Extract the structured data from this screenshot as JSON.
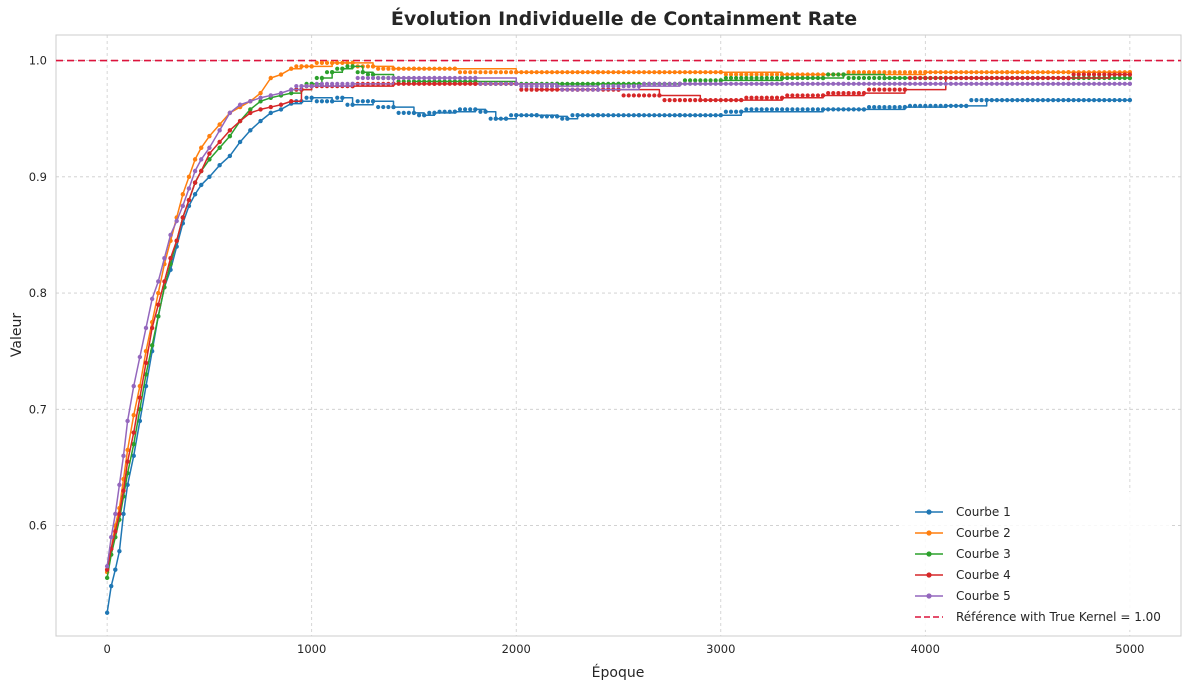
{
  "chart_data": {
    "type": "line",
    "title": "Évolution Individuelle de Containment Rate",
    "xlabel": "Époque",
    "ylabel": "Valeur",
    "xlim": [
      -250,
      5250
    ],
    "ylim": [
      0.505,
      1.022
    ],
    "xticks": [
      0,
      1000,
      2000,
      3000,
      4000,
      5000
    ],
    "xtick_labels": [
      "0",
      "1000",
      "2000",
      "3000",
      "4000",
      "5000"
    ],
    "yticks": [
      0.6,
      0.7,
      0.8,
      0.9,
      1.0
    ],
    "ytick_labels": [
      "0.6",
      "0.7",
      "0.8",
      "0.9",
      "1.0"
    ],
    "grid": true,
    "legend_position": "bottom-right",
    "series": [
      {
        "name": "Courbe 1",
        "color": "#1f77b4",
        "x": [
          0,
          20,
          40,
          60,
          80,
          100,
          130,
          160,
          190,
          220,
          250,
          280,
          310,
          340,
          370,
          400,
          430,
          460,
          500,
          550,
          600,
          650,
          700,
          750,
          800,
          850,
          900,
          950,
          1000,
          1100,
          1150,
          1200,
          1300,
          1400,
          1500,
          1550,
          1600,
          1700,
          1800,
          1850,
          1900,
          1950,
          2000,
          2100,
          2200,
          2250,
          2300,
          2400,
          2600,
          2800,
          3000,
          3100,
          3500,
          3700,
          3900,
          4100,
          4200,
          4300,
          4500,
          4700,
          5000
        ],
        "y": [
          0.525,
          0.548,
          0.562,
          0.578,
          0.61,
          0.635,
          0.66,
          0.69,
          0.72,
          0.75,
          0.78,
          0.805,
          0.82,
          0.84,
          0.86,
          0.875,
          0.885,
          0.893,
          0.9,
          0.91,
          0.918,
          0.93,
          0.94,
          0.948,
          0.955,
          0.958,
          0.963,
          0.965,
          0.968,
          0.965,
          0.968,
          0.962,
          0.965,
          0.96,
          0.955,
          0.953,
          0.955,
          0.956,
          0.958,
          0.956,
          0.95,
          0.95,
          0.953,
          0.953,
          0.952,
          0.95,
          0.953,
          0.953,
          0.953,
          0.953,
          0.953,
          0.956,
          0.958,
          0.958,
          0.96,
          0.961,
          0.961,
          0.966,
          0.966,
          0.966,
          0.966
        ]
      },
      {
        "name": "Courbe 2",
        "color": "#ff7f0e",
        "x": [
          0,
          20,
          40,
          60,
          80,
          100,
          130,
          160,
          190,
          220,
          250,
          280,
          310,
          340,
          370,
          400,
          430,
          460,
          500,
          550,
          600,
          650,
          700,
          750,
          800,
          850,
          900,
          950,
          1000,
          1100,
          1200,
          1300,
          1400,
          1500,
          1700,
          2000,
          2400,
          2700,
          3000,
          3300,
          3600,
          4000,
          4400,
          4700,
          5000
        ],
        "y": [
          0.56,
          0.58,
          0.6,
          0.615,
          0.64,
          0.665,
          0.695,
          0.72,
          0.75,
          0.775,
          0.8,
          0.825,
          0.845,
          0.865,
          0.885,
          0.9,
          0.915,
          0.925,
          0.935,
          0.945,
          0.955,
          0.96,
          0.965,
          0.972,
          0.985,
          0.988,
          0.993,
          0.995,
          0.995,
          0.998,
          0.998,
          0.995,
          0.993,
          0.993,
          0.993,
          0.99,
          0.99,
          0.99,
          0.99,
          0.988,
          0.988,
          0.99,
          0.99,
          0.99,
          0.99
        ]
      },
      {
        "name": "Courbe 3",
        "color": "#2ca02c",
        "x": [
          0,
          20,
          40,
          60,
          80,
          100,
          130,
          160,
          190,
          220,
          250,
          280,
          310,
          340,
          370,
          400,
          430,
          460,
          500,
          550,
          600,
          650,
          700,
          750,
          800,
          850,
          900,
          950,
          1000,
          1050,
          1100,
          1150,
          1200,
          1250,
          1300,
          1400,
          1500,
          1800,
          2000,
          2200,
          2500,
          2800,
          3000,
          3300,
          3500,
          3600,
          3800,
          4000,
          4300,
          4700,
          5000
        ],
        "y": [
          0.555,
          0.575,
          0.59,
          0.605,
          0.625,
          0.645,
          0.67,
          0.7,
          0.73,
          0.755,
          0.78,
          0.805,
          0.825,
          0.845,
          0.865,
          0.88,
          0.895,
          0.905,
          0.915,
          0.925,
          0.935,
          0.948,
          0.958,
          0.965,
          0.968,
          0.97,
          0.972,
          0.975,
          0.98,
          0.985,
          0.99,
          0.993,
          0.995,
          0.99,
          0.988,
          0.985,
          0.982,
          0.982,
          0.98,
          0.98,
          0.98,
          0.98,
          0.983,
          0.985,
          0.985,
          0.988,
          0.985,
          0.985,
          0.985,
          0.985,
          0.985
        ]
      },
      {
        "name": "Courbe 4",
        "color": "#d62728",
        "x": [
          0,
          20,
          40,
          60,
          80,
          100,
          130,
          160,
          190,
          220,
          250,
          280,
          310,
          340,
          370,
          400,
          430,
          460,
          500,
          550,
          600,
          650,
          700,
          750,
          800,
          850,
          900,
          950,
          1000,
          1200,
          1400,
          1600,
          1800,
          2000,
          2100,
          2300,
          2500,
          2700,
          2900,
          3100,
          3300,
          3500,
          3700,
          3900,
          4100,
          4400,
          4700,
          4900,
          5000
        ],
        "y": [
          0.562,
          0.58,
          0.595,
          0.61,
          0.63,
          0.655,
          0.68,
          0.71,
          0.74,
          0.77,
          0.79,
          0.81,
          0.83,
          0.845,
          0.865,
          0.88,
          0.895,
          0.905,
          0.92,
          0.93,
          0.94,
          0.948,
          0.955,
          0.958,
          0.96,
          0.962,
          0.965,
          0.975,
          0.978,
          0.978,
          0.98,
          0.98,
          0.98,
          0.98,
          0.975,
          0.975,
          0.975,
          0.97,
          0.966,
          0.966,
          0.968,
          0.97,
          0.972,
          0.975,
          0.985,
          0.985,
          0.985,
          0.988,
          0.988
        ]
      },
      {
        "name": "Courbe 5",
        "color": "#9467bd",
        "x": [
          0,
          20,
          40,
          60,
          80,
          100,
          130,
          160,
          190,
          220,
          250,
          280,
          310,
          340,
          370,
          400,
          430,
          460,
          500,
          550,
          600,
          650,
          700,
          750,
          800,
          850,
          900,
          950,
          1000,
          1200,
          1400,
          1600,
          1800,
          2000,
          2200,
          2400,
          2600,
          2800,
          3000,
          3200,
          3400,
          3600,
          3800,
          4000,
          4400,
          4700,
          5000
        ],
        "y": [
          0.565,
          0.59,
          0.61,
          0.635,
          0.66,
          0.69,
          0.72,
          0.745,
          0.77,
          0.795,
          0.81,
          0.83,
          0.85,
          0.862,
          0.875,
          0.89,
          0.905,
          0.915,
          0.925,
          0.94,
          0.955,
          0.962,
          0.965,
          0.968,
          0.97,
          0.972,
          0.975,
          0.978,
          0.978,
          0.98,
          0.985,
          0.985,
          0.985,
          0.98,
          0.978,
          0.975,
          0.978,
          0.98,
          0.98,
          0.98,
          0.98,
          0.98,
          0.98,
          0.98,
          0.98,
          0.98,
          0.98
        ]
      }
    ],
    "reference_line": {
      "label": "Référence with True Kernel = 1.00",
      "value": 1.0,
      "color": "#dc143c",
      "style": "dashed"
    }
  }
}
